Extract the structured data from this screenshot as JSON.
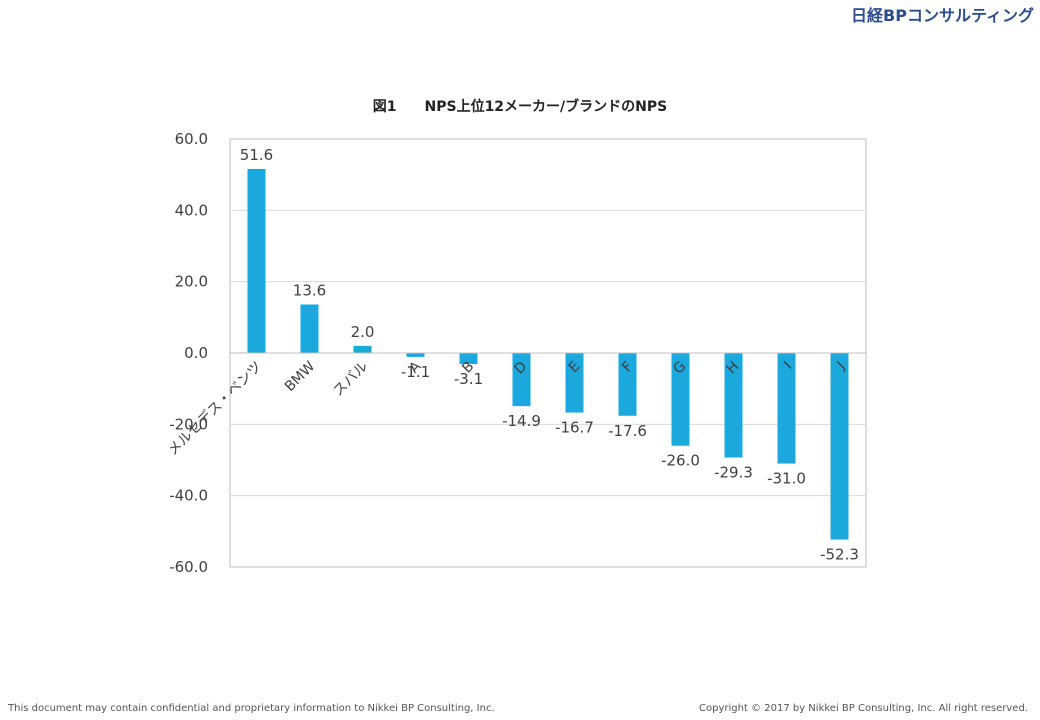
{
  "branding": {
    "logo_text": "日経BPコンサルティング"
  },
  "footer": {
    "disclaimer": "This document may contain confidential and proprietary information to Nikkei BP Consulting, Inc.",
    "copyright": "Copyright © 2017 by Nikkei BP Consulting, Inc. All right reserved."
  },
  "colors": {
    "bar": "#1ba8dc",
    "grid": "#d9d9d9",
    "axis": "#bfbfbf",
    "text": "#404040"
  },
  "chart_data": {
    "type": "bar",
    "title": "図1　　NPS上位12メーカー/ブランドのNPS",
    "categories": [
      "メルセデス・ベンツ",
      "BMW",
      "スバル",
      "A",
      "B",
      "D",
      "E",
      "F",
      "G",
      "H",
      "I",
      "J"
    ],
    "values": [
      51.6,
      13.6,
      2.0,
      -1.1,
      -3.1,
      -14.9,
      -16.7,
      -17.6,
      -26.0,
      -29.3,
      -31.0,
      -52.3
    ],
    "value_labels": [
      "51.6",
      "13.6",
      "2.0",
      "-1.1",
      "-3.1",
      "-14.9",
      "-16.7",
      "-17.6",
      "-26.0",
      "-29.3",
      "-31.0",
      "-52.3"
    ],
    "yticks": [
      "60.0",
      "40.0",
      "20.0",
      "0.0",
      "-20.0",
      "-40.0",
      "-60.0"
    ],
    "ylim": [
      -60,
      60
    ],
    "grid": true,
    "legend": "none"
  }
}
